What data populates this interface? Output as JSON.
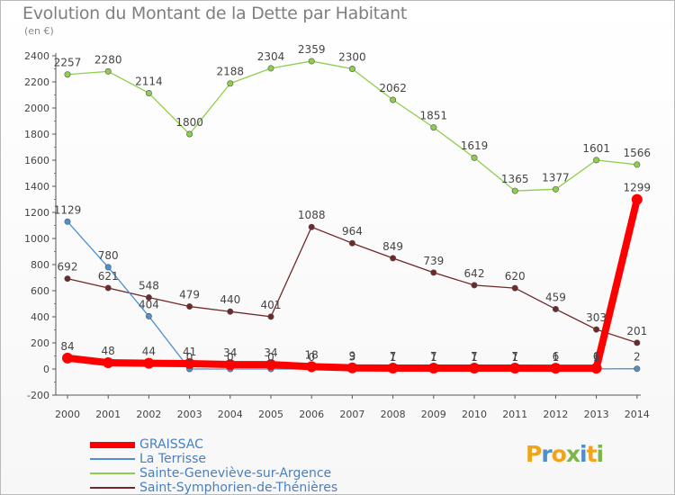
{
  "title": "Evolution du Montant de la Dette par Habitant",
  "subtitle": "(en €)",
  "logo": {
    "text": "Proxiti",
    "colors": [
      "#f2a419",
      "#4e8fce",
      "#f2a419",
      "#7ab648",
      "#4e8fce",
      "#f2a419",
      "#7ab648"
    ]
  },
  "chart_data": {
    "type": "line",
    "title": "Evolution du Montant de la Dette par Habitant",
    "subtitle": "(en €)",
    "xlabel": "",
    "ylabel": "",
    "x": [
      "2000",
      "2001",
      "2002",
      "2003",
      "2004",
      "2005",
      "2006",
      "2007",
      "2008",
      "2009",
      "2010",
      "2011",
      "2012",
      "2013",
      "2014"
    ],
    "ylim": [
      -200,
      2400
    ],
    "yticks": [
      -200,
      0,
      200,
      400,
      600,
      800,
      1000,
      1200,
      1400,
      1600,
      1800,
      2000,
      2200,
      2400
    ],
    "grid": false,
    "legend_position": "bottom-left",
    "series": [
      {
        "name": "GRAISSAC",
        "color": "#ff0000",
        "emphasis": true,
        "values": [
          84,
          48,
          44,
          41,
          34,
          34,
          18,
          9,
          7,
          7,
          7,
          7,
          6,
          6,
          1299
        ],
        "labels": [
          "84",
          "48",
          "44",
          "41",
          "34",
          "34",
          "18",
          "9",
          "7",
          "7",
          "7",
          "7",
          "6",
          "6",
          "1299"
        ]
      },
      {
        "name": "La Terrisse",
        "color": "#4e8fce",
        "values": [
          1129,
          780,
          404,
          0,
          0,
          0,
          0,
          3,
          1,
          1,
          1,
          1,
          1,
          1,
          2
        ],
        "labels": [
          "1129",
          "780",
          "404",
          "0",
          "0",
          "0",
          "0",
          "3",
          "1",
          "1",
          "1",
          "1",
          "1",
          "1",
          "2"
        ]
      },
      {
        "name": "Sainte-Geneviève-sur-Argence",
        "color": "#8ece4e",
        "values": [
          2257,
          2280,
          2114,
          1800,
          2188,
          2304,
          2359,
          2300,
          2062,
          1851,
          1619,
          1365,
          1377,
          1601,
          1566
        ],
        "labels": [
          "2257",
          "2280",
          "2114",
          "1800",
          "2188",
          "2304",
          "2359",
          "2300",
          "2062",
          "1851",
          "1619",
          "1365",
          "1377",
          "1601",
          "1566"
        ]
      },
      {
        "name": "Saint-Symphorien-de-Thénières",
        "color": "#702828",
        "values": [
          692,
          621,
          548,
          479,
          440,
          401,
          1088,
          964,
          849,
          739,
          642,
          620,
          459,
          303,
          201
        ],
        "labels": [
          "692",
          "621",
          "548",
          "479",
          "440",
          "401",
          "1088",
          "964",
          "849",
          "739",
          "642",
          "620",
          "459",
          "303",
          "201"
        ]
      }
    ]
  }
}
